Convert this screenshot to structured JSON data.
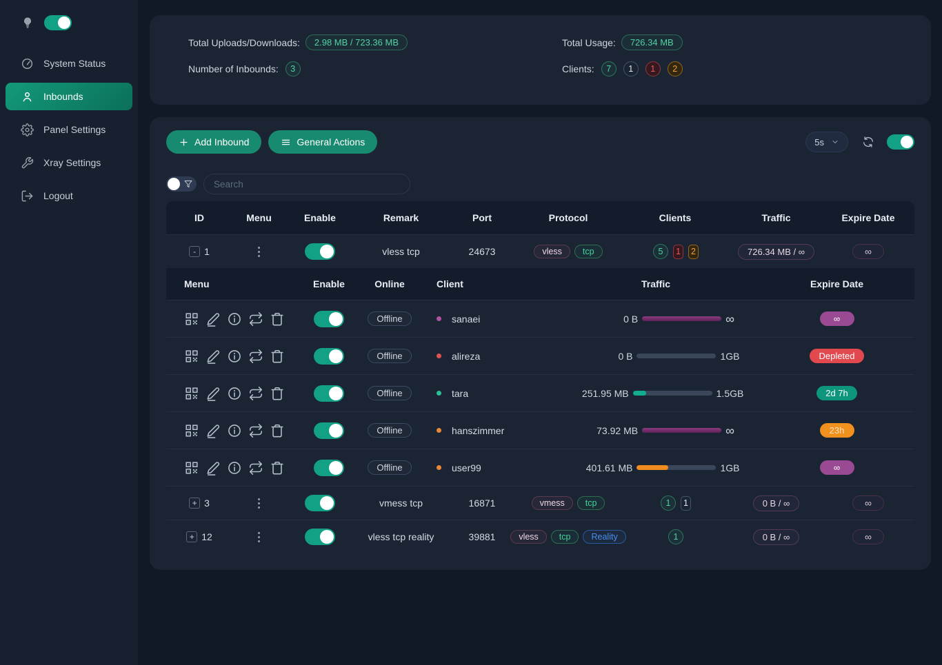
{
  "colors": {
    "accent_teal": "#178a6f",
    "toggle_green": "#12a185",
    "purple": "#9a4a92",
    "red": "#e2494f",
    "orange": "#f0901d",
    "blue": "#4a8fe8",
    "magenta_bar": "#6f2766"
  },
  "icons": {
    "theme": "bulb-icon",
    "system_status": "gauge-icon",
    "inbounds": "user-icon",
    "panel_settings": "gear-icon",
    "xray_settings": "wrench-icon",
    "logout": "logout-icon",
    "add": "plus-icon",
    "general_actions": "menu-lines-icon",
    "interval": "chevron-down-icon",
    "refresh": "refresh-icon",
    "filter": "funnel-icon",
    "row_actions": [
      "qr-code-icon",
      "edit-icon",
      "info-icon",
      "reset-traffic-icon",
      "delete-icon"
    ]
  },
  "sidebar": {
    "items": [
      {
        "label": "System Status"
      },
      {
        "label": "Inbounds"
      },
      {
        "label": "Panel Settings"
      },
      {
        "label": "Xray Settings"
      },
      {
        "label": "Logout"
      }
    ]
  },
  "stats": {
    "total_updown_label": "Total Uploads/Downloads:",
    "total_updown_value": "2.98 MB / 723.36 MB",
    "inbounds_label": "Number of Inbounds:",
    "inbounds_value": "3",
    "total_usage_label": "Total Usage:",
    "total_usage_value": "726.34 MB",
    "clients_label": "Clients:",
    "clients_counts": [
      {
        "value": "7"
      },
      {
        "value": "1"
      },
      {
        "value": "1"
      },
      {
        "value": "2"
      }
    ]
  },
  "toolbar": {
    "add_inbound_label": "Add Inbound",
    "general_actions_label": "General Actions",
    "refresh_interval": "5s"
  },
  "search": {
    "placeholder": "Search"
  },
  "table": {
    "headers": [
      "ID",
      "Menu",
      "Enable",
      "Remark",
      "Port",
      "Protocol",
      "Clients",
      "Traffic",
      "Expire Date"
    ],
    "rows": [
      {
        "id": "1",
        "expand": "-",
        "remark": "vless tcp",
        "port": "24673",
        "protocols": [
          "vless",
          "tcp"
        ],
        "clients": [
          "5",
          "1",
          "2"
        ],
        "traffic": "726.34 MB / ∞",
        "expire": "∞"
      },
      {
        "id": "3",
        "expand": "+",
        "remark": "vmess tcp",
        "port": "16871",
        "protocols": [
          "vmess",
          "tcp"
        ],
        "clients": [
          "1",
          "1"
        ],
        "traffic": "0 B / ∞",
        "expire": "∞"
      },
      {
        "id": "12",
        "expand": "+",
        "remark": "vless tcp reality",
        "port": "39881",
        "protocols": [
          "vless",
          "tcp",
          "Reality"
        ],
        "clients": [
          "1"
        ],
        "traffic": "0 B / ∞",
        "expire": "∞"
      }
    ]
  },
  "client_table": {
    "headers": [
      "Menu",
      "Enable",
      "Online",
      "Client",
      "Traffic",
      "Expire Date"
    ],
    "rows": [
      {
        "status": "Offline",
        "name": "sanaei",
        "usage": "0 B",
        "limit": "∞",
        "bar_width": "100%",
        "expire": "∞"
      },
      {
        "status": "Offline",
        "name": "alireza",
        "usage": "0 B",
        "limit": "1GB",
        "bar_width": "0%",
        "expire": "Depleted"
      },
      {
        "status": "Offline",
        "name": "tara",
        "usage": "251.95 MB",
        "limit": "1.5GB",
        "bar_width": "17%",
        "expire": "2d 7h"
      },
      {
        "status": "Offline",
        "name": "hanszimmer",
        "usage": "73.92 MB",
        "limit": "∞",
        "bar_width": "100%",
        "expire": "23h"
      },
      {
        "status": "Offline",
        "name": "user99",
        "usage": "401.61 MB",
        "limit": "1GB",
        "bar_width": "40%",
        "expire": "∞"
      }
    ]
  }
}
